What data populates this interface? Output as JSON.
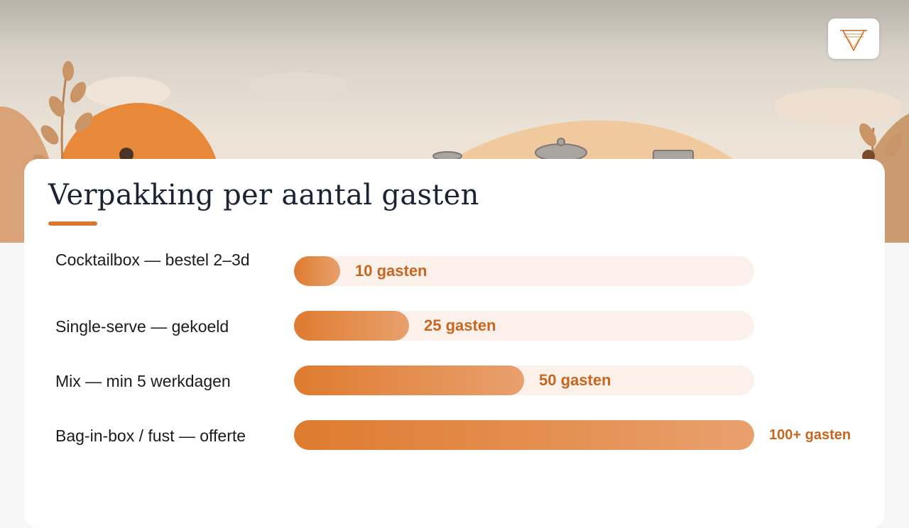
{
  "title": "Verpakking per aantal gasten",
  "colors": {
    "accent": "#d97a33",
    "bar_start": "#de7b2f",
    "bar_end": "#e9a06d",
    "track": "#fbf1ea",
    "value_text": "#c8661f"
  },
  "logo": {
    "icon": "logo-icon"
  },
  "chart_data": {
    "type": "bar",
    "orientation": "horizontal",
    "categories": [
      "Cocktailbox — bestel 2–3d",
      "Single-serve — gekoeld",
      "Mix — min 5 werkdagen",
      "Bag-in-box / fust — offerte"
    ],
    "values": [
      10,
      25,
      50,
      100
    ],
    "value_labels": [
      "10 gasten",
      "25 gasten",
      "50 gasten",
      "100+ gasten"
    ],
    "xlim": [
      0,
      100
    ],
    "grid": false,
    "legend": "none"
  }
}
